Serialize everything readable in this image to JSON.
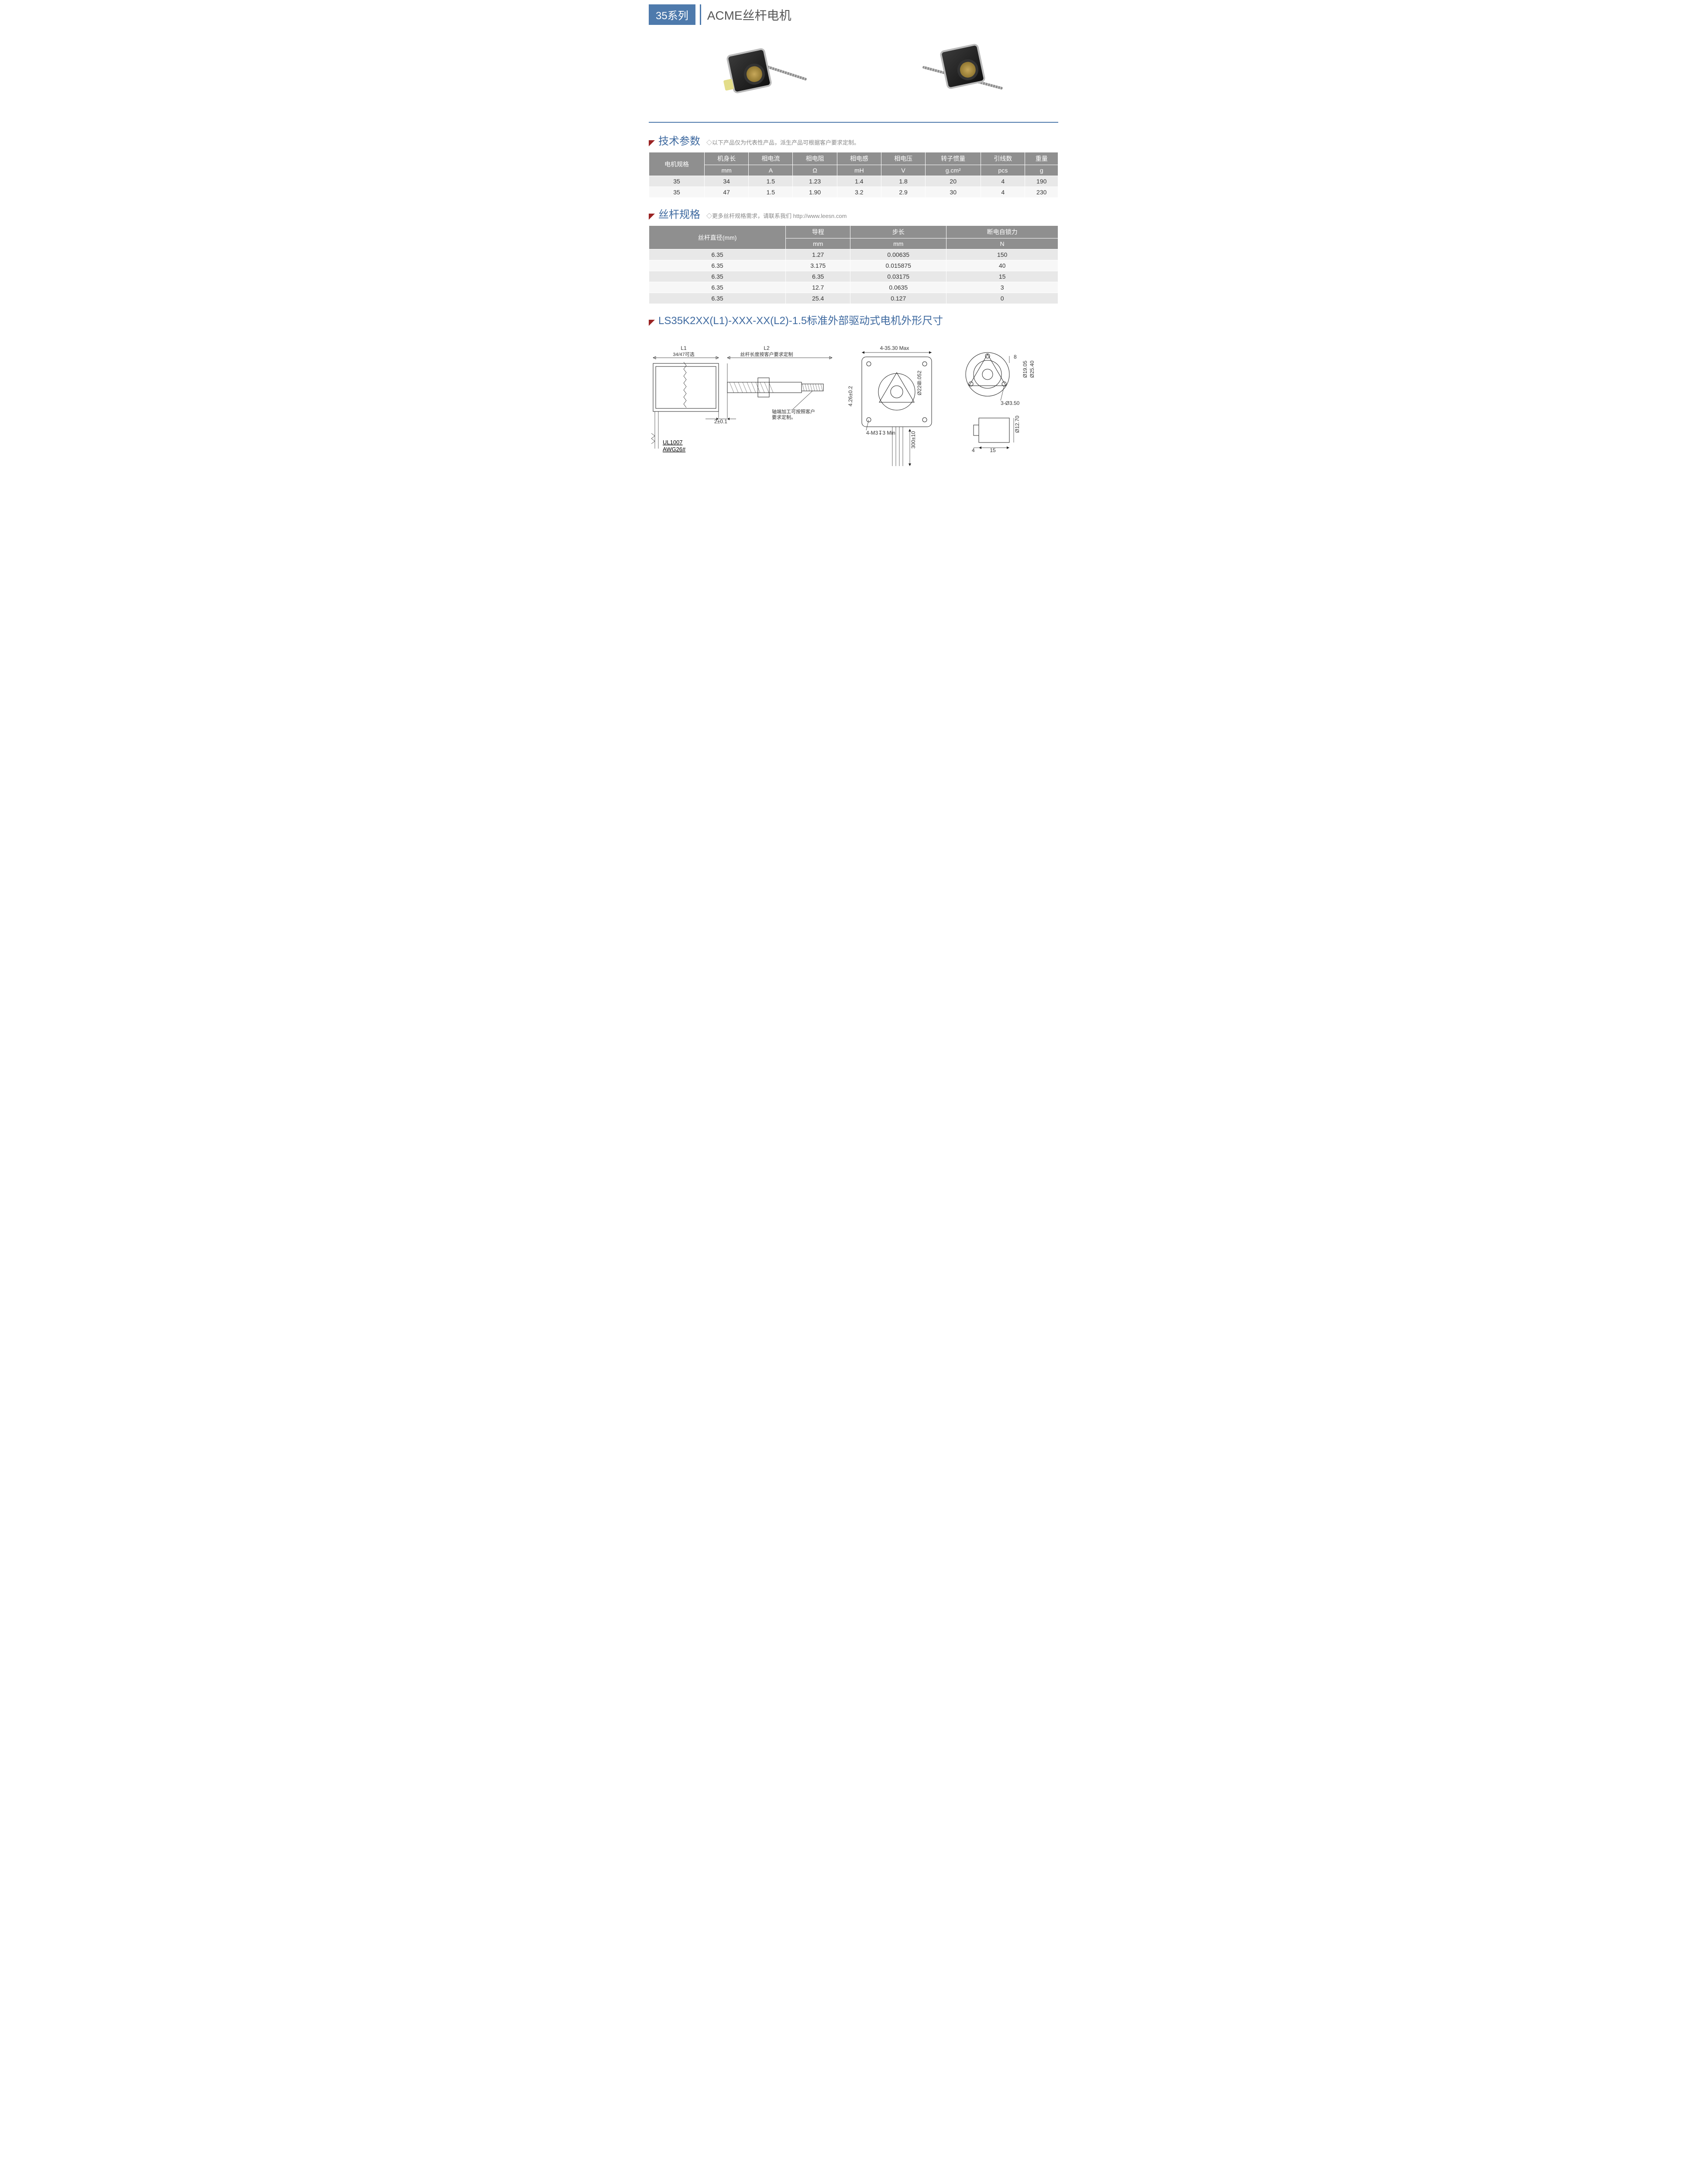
{
  "header": {
    "series_badge": "35系列",
    "title": "ACME丝杆电机"
  },
  "tech_section": {
    "title": "技术参数",
    "subtitle": "◇以下产品仅为代表性产品，派生产品可根据客户要求定制。"
  },
  "tech_table": {
    "rowhead": "电机规格",
    "header_top": [
      "机身长",
      "相电流",
      "相电阻",
      "相电感",
      "相电压",
      "转子惯量",
      "引线数",
      "重量"
    ],
    "header_unit": [
      "mm",
      "A",
      "Ω",
      "mH",
      "V",
      "g.cm²",
      "pcs",
      "g"
    ],
    "rows": [
      [
        "35",
        "34",
        "1.5",
        "1.23",
        "1.4",
        "1.8",
        "20",
        "4",
        "190"
      ],
      [
        "35",
        "47",
        "1.5",
        "1.90",
        "3.2",
        "2.9",
        "30",
        "4",
        "230"
      ]
    ]
  },
  "screw_section": {
    "title": "丝杆规格",
    "subtitle_prefix": "◇更多丝杆规格需求，请联系我们 ",
    "subtitle_link": "http://www.leesn.com"
  },
  "screw_table": {
    "col0": "丝杆直径(mm)",
    "header_top": [
      "导程",
      "步长",
      "断电自锁力"
    ],
    "header_unit": [
      "mm",
      "mm",
      "N"
    ],
    "rows": [
      [
        "6.35",
        "1.27",
        "0.00635",
        "150"
      ],
      [
        "6.35",
        "3.175",
        "0.015875",
        "40"
      ],
      [
        "6.35",
        "6.35",
        "0.03175",
        "15"
      ],
      [
        "6.35",
        "12.7",
        "0.0635",
        "3"
      ],
      [
        "6.35",
        "25.4",
        "0.127",
        "0"
      ]
    ]
  },
  "dim_section": {
    "title": "LS35K2XX(L1)-XXX-XX(L2)-1.5标准外部驱动式电机外形尺寸"
  },
  "drawing": {
    "L1": "L1",
    "L1_sub": "34/47可选",
    "L2": "L2",
    "L2_sub": "丝杆长度按客户要求定制",
    "gap": "2±0.1",
    "wire1": "UL1007",
    "wire2": "AWG26#",
    "note": "轴端加工可按照客户要求定制。",
    "front_top": "4-35.30 Max",
    "front_left": "4.26±0.2",
    "front_bore": "Ø22-0.052",
    "front_bore_tol0": "0",
    "front_holes": "4-M3↧3 Min",
    "front_wirelen": "300±10",
    "flange_pitch": "8",
    "flange_d1": "Ø19.05",
    "flange_d2": "Ø25.40",
    "flange_holes": "3-Ø3.50",
    "side_h": "Ø12.70",
    "side_w": "15",
    "side_lip": "4"
  },
  "colors": {
    "badge_bg": "#4e7aac",
    "section_title": "#3f6aa0",
    "marker": "#9a2424",
    "thead_bg": "#8f8f8f",
    "row_odd": "#e8e8e8",
    "row_even": "#f7f7f7"
  }
}
